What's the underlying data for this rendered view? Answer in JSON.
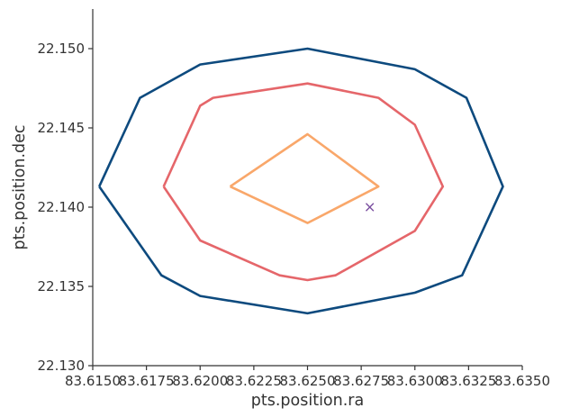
{
  "chart_data": {
    "type": "line",
    "xlabel": "pts.position.ra",
    "ylabel": "pts.position.dec",
    "xlim": [
      83.615,
      83.635
    ],
    "ylim": [
      22.13,
      22.1525
    ],
    "x_ticks": [
      83.615,
      83.6175,
      83.62,
      83.6225,
      83.625,
      83.6275,
      83.63,
      83.6325,
      83.635
    ],
    "x_tick_labels": [
      "83.6150",
      "83.6175",
      "83.6200",
      "83.6225",
      "83.6250",
      "83.6275",
      "83.6300",
      "83.6325",
      "83.6350"
    ],
    "y_ticks": [
      22.13,
      22.135,
      22.14,
      22.145,
      22.15
    ],
    "y_tick_labels": [
      "22.130",
      "22.135",
      "22.140",
      "22.145",
      "22.150"
    ],
    "grid": false,
    "series": [
      {
        "color": "#0d4a7e",
        "points": [
          [
            83.6153,
            22.1413
          ],
          [
            83.6172,
            22.1469
          ],
          [
            83.62,
            22.149
          ],
          [
            83.625,
            22.15
          ],
          [
            83.63,
            22.1487
          ],
          [
            83.6324,
            22.1469
          ],
          [
            83.6341,
            22.1413
          ],
          [
            83.6322,
            22.1357
          ],
          [
            83.63,
            22.1346
          ],
          [
            83.625,
            22.1333
          ],
          [
            83.62,
            22.1344
          ],
          [
            83.6182,
            22.1357
          ],
          [
            83.6153,
            22.1413
          ]
        ]
      },
      {
        "color": "#e5666a",
        "points": [
          [
            83.6183,
            22.1413
          ],
          [
            83.62,
            22.1464
          ],
          [
            83.6206,
            22.1469
          ],
          [
            83.625,
            22.1478
          ],
          [
            83.6283,
            22.1469
          ],
          [
            83.63,
            22.1452
          ],
          [
            83.6313,
            22.1413
          ],
          [
            83.63,
            22.1385
          ],
          [
            83.6263,
            22.1357
          ],
          [
            83.625,
            22.1354
          ],
          [
            83.6237,
            22.1357
          ],
          [
            83.62,
            22.1379
          ],
          [
            83.6183,
            22.1413
          ]
        ]
      },
      {
        "color": "#f9a76a",
        "points": [
          [
            83.6214,
            22.1413
          ],
          [
            83.625,
            22.1446
          ],
          [
            83.6283,
            22.1413
          ],
          [
            83.625,
            22.139
          ],
          [
            83.6214,
            22.1413
          ]
        ]
      }
    ],
    "markers": [
      {
        "x": 83.6279,
        "y": 22.14,
        "symbol": "x",
        "color": "#7b4fa0"
      }
    ]
  }
}
